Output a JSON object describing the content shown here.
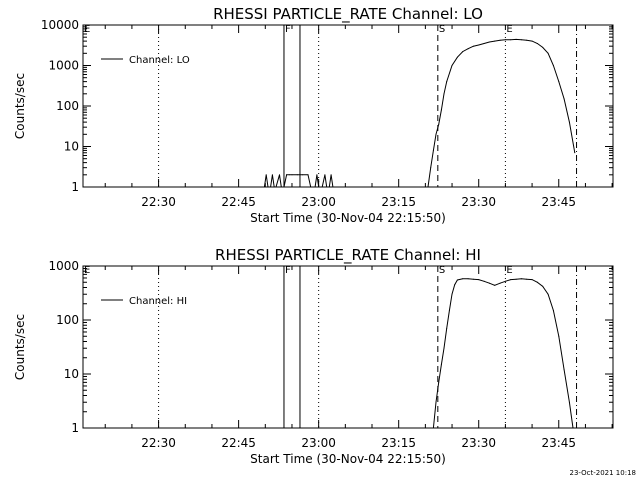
{
  "stamp": "23-Oct-2021 10:18",
  "chart_data": [
    {
      "type": "line",
      "title": "RHESSI PARTICLE_RATE Channel: LO",
      "xlabel": "Start Time (30-Nov-04 22:15:50)",
      "ylabel": "Counts/sec",
      "yscale": "log",
      "xlim": [
        "22:15:50",
        "23:55:10"
      ],
      "ylim": [
        1,
        10000
      ],
      "ytick_labels": [
        "1",
        "10",
        "100",
        "1000",
        "10000"
      ],
      "xtick_labels": [
        "22:30",
        "22:45",
        "23:00",
        "23:15",
        "23:30",
        "23:45"
      ],
      "legend": {
        "position": "top-left",
        "label": "Channel: LO"
      },
      "markers": [
        {
          "label": "E",
          "time": "22:15:50",
          "style": "dotted"
        },
        {
          "label": "F",
          "time": "22:53:30",
          "style": "solid"
        },
        {
          "label": "",
          "time": "22:56:30",
          "style": "solid"
        },
        {
          "label": "S",
          "time": "23:22:20",
          "style": "dashed"
        },
        {
          "label": "E",
          "time": "23:35:00",
          "style": "dotted"
        },
        {
          "label": "",
          "time": "23:48:20",
          "style": "dashdot"
        }
      ],
      "vlines_dotted": [
        "22:30",
        "23:00"
      ],
      "series": [
        {
          "name": "Channel: LO",
          "x": [
            "22:49:30",
            "22:49:50",
            "22:50:10",
            "22:50:30",
            "22:51:00",
            "22:51:20",
            "22:51:40",
            "22:52:00",
            "22:52:40",
            "22:53:00",
            "22:53:30",
            "22:54:00",
            "22:54:30",
            "22:55:00",
            "22:56:00",
            "22:57:00",
            "22:58:00",
            "22:58:30",
            "22:59:00",
            "22:59:20",
            "22:59:40",
            "23:00:00",
            "23:00:20",
            "23:00:40",
            "23:01:10",
            "23:01:30",
            "23:02:00",
            "23:02:20",
            "23:02:40",
            "23:03:00",
            "23:20:30",
            "23:21:00",
            "23:21:30",
            "23:22:00",
            "23:22:30",
            "23:23:00",
            "23:23:30",
            "23:24:00",
            "23:25:00",
            "23:26:00",
            "23:27:00",
            "23:28:00",
            "23:29:00",
            "23:30:00",
            "23:31:00",
            "23:32:00",
            "23:33:00",
            "23:34:00",
            "23:35:00",
            "23:36:00",
            "23:37:00",
            "23:38:00",
            "23:39:00",
            "23:40:00",
            "23:41:00",
            "23:42:00",
            "23:43:00",
            "23:44:00",
            "23:45:00",
            "23:46:00",
            "23:47:00",
            "23:48:00"
          ],
          "y": [
            1,
            1,
            2,
            1,
            1,
            2,
            1,
            1,
            2,
            1,
            1,
            2,
            2,
            2,
            2,
            2,
            2,
            1,
            1,
            1,
            2,
            1,
            1,
            1,
            2,
            1,
            1,
            2,
            1,
            1,
            1,
            3,
            8,
            20,
            35,
            80,
            200,
            400,
            1000,
            1600,
            2200,
            2600,
            3000,
            3200,
            3500,
            3800,
            4000,
            4200,
            4300,
            4300,
            4400,
            4300,
            4200,
            4000,
            3500,
            2800,
            2000,
            1000,
            400,
            150,
            40,
            7
          ]
        }
      ]
    },
    {
      "type": "line",
      "title": "RHESSI PARTICLE_RATE Channel: HI",
      "xlabel": "Start Time (30-Nov-04 22:15:50)",
      "ylabel": "Counts/sec",
      "yscale": "log",
      "xlim": [
        "22:15:50",
        "23:55:10"
      ],
      "ylim": [
        1,
        1000
      ],
      "ytick_labels": [
        "1",
        "10",
        "100",
        "1000"
      ],
      "xtick_labels": [
        "22:30",
        "22:45",
        "23:00",
        "23:15",
        "23:30",
        "23:45"
      ],
      "legend": {
        "position": "top-left",
        "label": "Channel: HI"
      },
      "markers": [
        {
          "label": "E",
          "time": "22:15:50",
          "style": "dotted"
        },
        {
          "label": "F",
          "time": "22:53:30",
          "style": "solid"
        },
        {
          "label": "",
          "time": "22:56:30",
          "style": "solid"
        },
        {
          "label": "S",
          "time": "23:22:20",
          "style": "dashed"
        },
        {
          "label": "E",
          "time": "23:35:00",
          "style": "dotted"
        },
        {
          "label": "",
          "time": "23:48:20",
          "style": "dashdot"
        }
      ],
      "vlines_dotted": [
        "22:30",
        "23:00"
      ],
      "series": [
        {
          "name": "Channel: HI",
          "x": [
            "23:21:30",
            "23:22:00",
            "23:22:30",
            "23:23:00",
            "23:23:30",
            "23:24:00",
            "23:24:30",
            "23:25:00",
            "23:25:30",
            "23:26:00",
            "23:27:00",
            "23:28:00",
            "23:29:00",
            "23:30:00",
            "23:31:00",
            "23:32:00",
            "23:33:00",
            "23:34:00",
            "23:35:00",
            "23:36:00",
            "23:37:00",
            "23:38:00",
            "23:39:00",
            "23:40:00",
            "23:41:00",
            "23:42:00",
            "23:43:00",
            "23:44:00",
            "23:45:00",
            "23:46:00",
            "23:47:00",
            "23:47:40"
          ],
          "y": [
            1,
            3,
            7,
            15,
            30,
            70,
            150,
            300,
            450,
            550,
            580,
            580,
            570,
            560,
            520,
            480,
            440,
            480,
            520,
            560,
            570,
            580,
            570,
            560,
            500,
            420,
            300,
            150,
            50,
            12,
            3,
            1
          ]
        }
      ]
    }
  ]
}
